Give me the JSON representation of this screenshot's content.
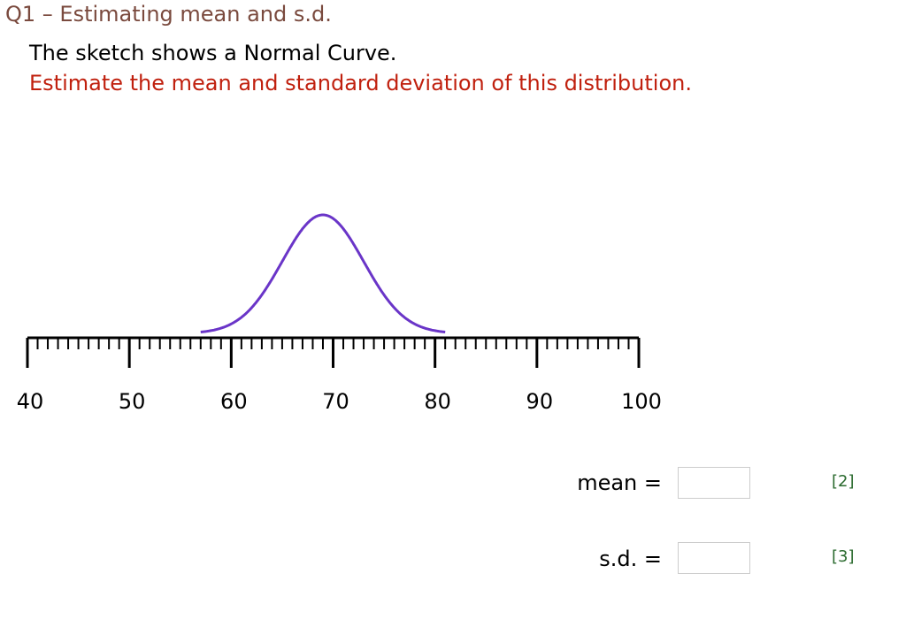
{
  "question": {
    "title": "Q1 – Estimating mean and s.d.",
    "line1": "The sketch shows a Normal Curve.",
    "line2": "Estimate the mean and standard deviation of this distribution."
  },
  "colors": {
    "curve": "#6a35c8",
    "title": "#7a4a3e",
    "instruction": "#c0200e",
    "marks": "#2a6a2e"
  },
  "chart_data": {
    "type": "line",
    "description_kind": "normal curve over number line",
    "axis": {
      "min": 40,
      "max": 100,
      "major_step": 10,
      "minor_step": 1,
      "tick_labels": [
        "40",
        "50",
        "60",
        "70",
        "80",
        "90",
        "100"
      ]
    },
    "curve": {
      "mean": 69,
      "sd": 4,
      "x_range": [
        57,
        81
      ]
    }
  },
  "answers": [
    {
      "label": "mean =",
      "value": "",
      "marks": "[2]"
    },
    {
      "label": "s.d. =",
      "value": "",
      "marks": "[3]"
    }
  ]
}
